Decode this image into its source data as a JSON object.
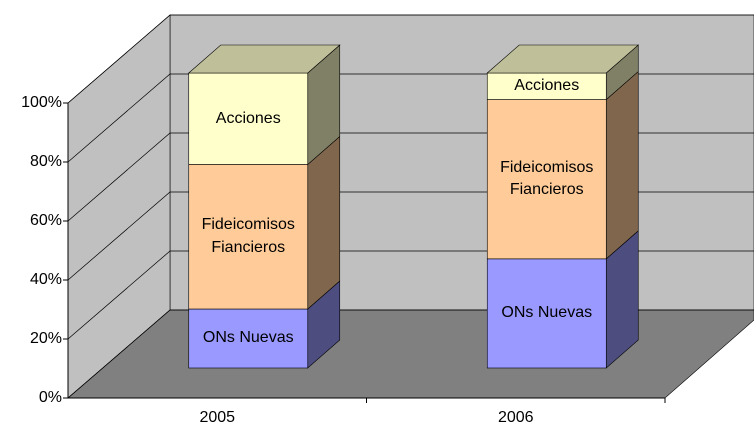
{
  "chart_data": {
    "type": "bar3d_stacked",
    "categories": [
      "2005",
      "2006"
    ],
    "series": [
      {
        "name": "ONs Nuevas",
        "color": "#9999ff",
        "values": [
          20,
          37
        ]
      },
      {
        "name": "Fideicomisos Fiancieros",
        "color": "#ffcc99",
        "values": [
          49,
          54
        ]
      },
      {
        "name": "Acciones",
        "color": "#ffffcc",
        "values": [
          31,
          9
        ]
      }
    ],
    "ylim": [
      0,
      100
    ],
    "yticks": [
      {
        "value": 0,
        "label": "0%"
      },
      {
        "value": 20,
        "label": "20%"
      },
      {
        "value": 40,
        "label": "40%"
      },
      {
        "value": 60,
        "label": "60%"
      },
      {
        "value": 80,
        "label": "80%"
      },
      {
        "value": 100,
        "label": "100%"
      }
    ],
    "grid": true
  }
}
